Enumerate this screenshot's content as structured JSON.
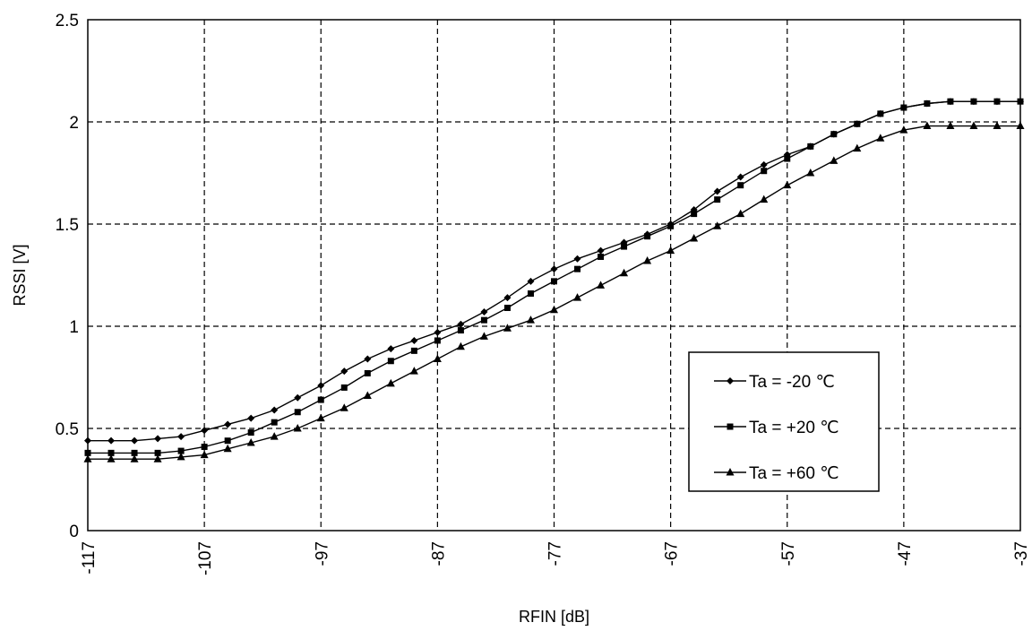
{
  "chart_data": {
    "type": "line",
    "xlabel": "RFIN [dB]",
    "ylabel": "RSSI [V]",
    "xlim": [
      -117,
      -37
    ],
    "ylim": [
      0,
      2.5
    ],
    "x_ticks": [
      "-117",
      "-107",
      "-97",
      "-87",
      "-77",
      "-67",
      "-57",
      "-47",
      "-37"
    ],
    "y_ticks": [
      "0",
      "0.5",
      "1",
      "1.5",
      "2",
      "2.5"
    ],
    "grid": true,
    "legend_position": "lower-right",
    "x": [
      -117,
      -115,
      -113,
      -111,
      -109,
      -107,
      -105,
      -103,
      -101,
      -99,
      -97,
      -95,
      -93,
      -91,
      -89,
      -87,
      -85,
      -83,
      -81,
      -79,
      -77,
      -75,
      -73,
      -71,
      -69,
      -67,
      -65,
      -63,
      -61,
      -59,
      -57,
      -55,
      -53,
      -51,
      -49,
      -47,
      -45,
      -43,
      -41,
      -39,
      -37
    ],
    "series": [
      {
        "name": "Ta = -20 ℃",
        "marker": "diamond",
        "values": [
          0.44,
          0.44,
          0.44,
          0.45,
          0.46,
          0.49,
          0.52,
          0.55,
          0.59,
          0.65,
          0.71,
          0.78,
          0.84,
          0.89,
          0.93,
          0.97,
          1.01,
          1.07,
          1.14,
          1.22,
          1.28,
          1.33,
          1.37,
          1.41,
          1.45,
          1.5,
          1.57,
          1.66,
          1.73,
          1.79,
          1.84,
          1.88,
          1.94,
          1.99,
          2.04,
          2.07,
          2.09,
          2.1,
          2.1,
          2.1,
          2.1
        ]
      },
      {
        "name": "Ta = +20 ℃",
        "marker": "square",
        "values": [
          0.38,
          0.38,
          0.38,
          0.38,
          0.39,
          0.41,
          0.44,
          0.48,
          0.53,
          0.58,
          0.64,
          0.7,
          0.77,
          0.83,
          0.88,
          0.93,
          0.98,
          1.03,
          1.09,
          1.16,
          1.22,
          1.28,
          1.34,
          1.39,
          1.44,
          1.49,
          1.55,
          1.62,
          1.69,
          1.76,
          1.82,
          1.88,
          1.94,
          1.99,
          2.04,
          2.07,
          2.09,
          2.1,
          2.1,
          2.1,
          2.1
        ]
      },
      {
        "name": "Ta = +60 ℃",
        "marker": "triangle",
        "values": [
          0.35,
          0.35,
          0.35,
          0.35,
          0.36,
          0.37,
          0.4,
          0.43,
          0.46,
          0.5,
          0.55,
          0.6,
          0.66,
          0.72,
          0.78,
          0.84,
          0.9,
          0.95,
          0.99,
          1.03,
          1.08,
          1.14,
          1.2,
          1.26,
          1.32,
          1.37,
          1.43,
          1.49,
          1.55,
          1.62,
          1.69,
          1.75,
          1.81,
          1.87,
          1.92,
          1.96,
          1.98,
          1.98,
          1.98,
          1.98,
          1.98
        ]
      }
    ]
  }
}
